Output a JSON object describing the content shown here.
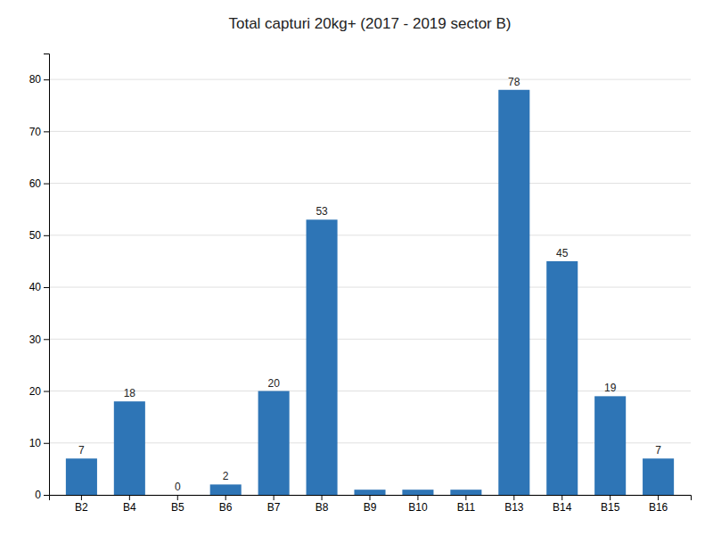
{
  "chart_data": {
    "type": "bar",
    "title": "Total capturi 20kg+ (2017 - 2019 sector B)",
    "categories": [
      "B2",
      "B4",
      "B5",
      "B6",
      "B7",
      "B8",
      "B9",
      "B10",
      "B11",
      "B13",
      "B14",
      "B15",
      "B16"
    ],
    "values": [
      7,
      18,
      0,
      2,
      20,
      53,
      1,
      1,
      1,
      78,
      45,
      19,
      7
    ],
    "value_labels": [
      "7",
      "18",
      "0",
      "2",
      "20",
      "53",
      null,
      null,
      null,
      "78",
      "45",
      "19",
      "7"
    ],
    "data_labels": true,
    "color": "#2E75B6",
    "ylim": [
      0,
      85
    ],
    "yticks": [
      0,
      10,
      20,
      30,
      40,
      50,
      60,
      70,
      80
    ],
    "grid": true
  }
}
